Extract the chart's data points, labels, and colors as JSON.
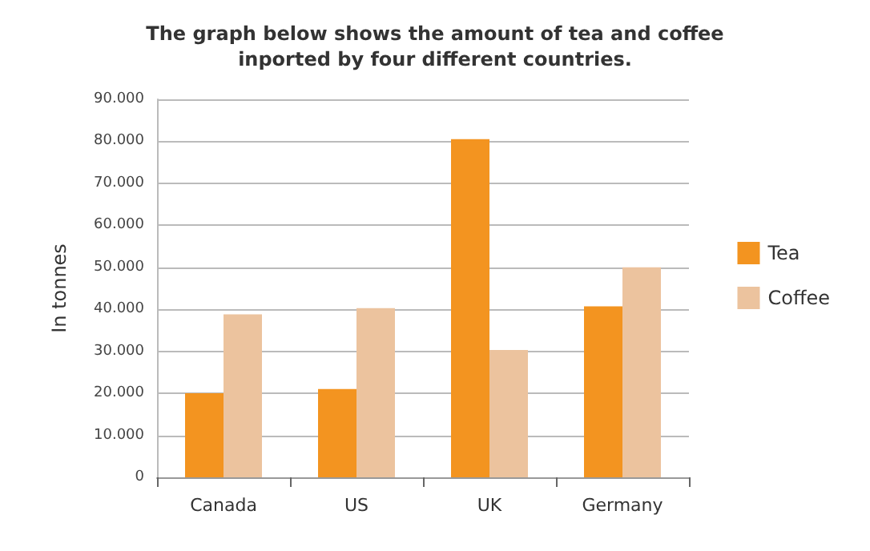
{
  "chart_data": {
    "type": "bar",
    "title": "The graph below shows the amount of tea and coffee\ninported by four different countries.",
    "ylabel": "In tonnes",
    "categories": [
      "Canada",
      "US",
      "UK",
      "Germany"
    ],
    "series": [
      {
        "name": "Tea",
        "color": "#f39420",
        "values": [
          20000,
          21000,
          80500,
          40700
        ]
      },
      {
        "name": "Coffee",
        "color": "#ecc39e",
        "values": [
          38800,
          40300,
          30300,
          50000
        ]
      }
    ],
    "ylim": [
      0,
      90000
    ],
    "yticks": [
      {
        "value": 0,
        "label": "0"
      },
      {
        "value": 10000,
        "label": "10.000"
      },
      {
        "value": 20000,
        "label": "20.000"
      },
      {
        "value": 30000,
        "label": "30.000"
      },
      {
        "value": 40000,
        "label": "40.000"
      },
      {
        "value": 50000,
        "label": "50.000"
      },
      {
        "value": 60000,
        "label": "60.000"
      },
      {
        "value": 70000,
        "label": "70.000"
      },
      {
        "value": 80000,
        "label": "80.000"
      },
      {
        "value": 90000,
        "label": "90.000"
      }
    ],
    "grid": "y",
    "legend": "right"
  }
}
